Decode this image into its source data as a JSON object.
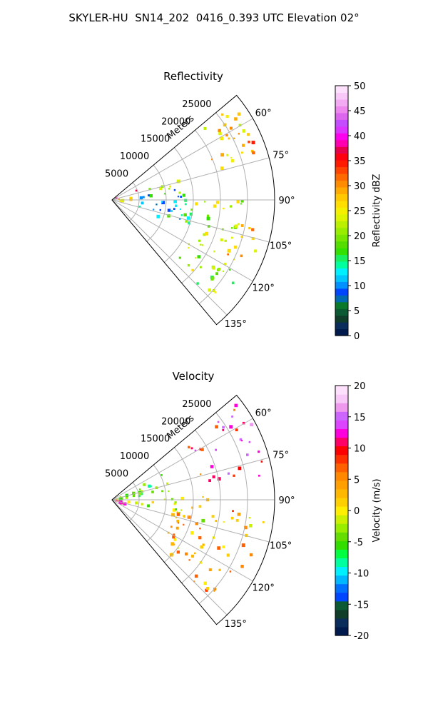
{
  "suptitle": "SKYLER-HU  SN14_202  0416_0.393 UTC Elevation 02°",
  "colors": {
    "reflectivity": [
      "#001a4d",
      "#0a2d5c",
      "#0f3d2a",
      "#0b5a34",
      "#0a7a2a",
      "#006bb0",
      "#0045ff",
      "#0090ff",
      "#00c8ff",
      "#00f0ff",
      "#00ff9e",
      "#18f060",
      "#33e000",
      "#55dd00",
      "#77e600",
      "#99ee00",
      "#bbf000",
      "#ddf500",
      "#f5f000",
      "#ffde00",
      "#ffc800",
      "#ffaa00",
      "#ff8c00",
      "#ff6a00",
      "#ff4400",
      "#ff1a00",
      "#ff0010",
      "#e8004a",
      "#ff00b0",
      "#ff00ee",
      "#dd33ff",
      "#c44dff",
      "#dd66ee",
      "#ee88ee",
      "#f3aaf3",
      "#f8c8f8",
      "#fce0fc"
    ],
    "velocity": [
      "#001a4d",
      "#0a2d5c",
      "#0f3d2a",
      "#0b5a34",
      "#0045ff",
      "#0070ff",
      "#00b8ff",
      "#00f0ff",
      "#00ff9e",
      "#00ff40",
      "#33dd00",
      "#66dd00",
      "#99ee00",
      "#ccf000",
      "#ffee00",
      "#ffd000",
      "#ffb800",
      "#ffa000",
      "#ff8800",
      "#ff6000",
      "#ff3000",
      "#ff0000",
      "#ff0066",
      "#ff00dd",
      "#dd44ff",
      "#cc66ff",
      "#ee99ee",
      "#f8c8f8",
      "#fce0fc"
    ]
  },
  "chart_data": [
    {
      "type": "heatmap",
      "projection": "polar-sector",
      "title": "Reflectivity",
      "radial_label": "Meters",
      "radial_ticks": [
        5000,
        10000,
        15000,
        20000,
        25000
      ],
      "radial_range": [
        0,
        30000
      ],
      "azimuth_ticks": [
        "60°",
        "75°",
        "90°",
        "105°",
        "120°",
        "135°"
      ],
      "azimuth_range": [
        50,
        140
      ],
      "colorbar": {
        "label": "Reflectivity dBZ",
        "range": [
          0,
          50
        ],
        "ticks": [
          0,
          5,
          10,
          15,
          20,
          25,
          30,
          35,
          40,
          45,
          50
        ]
      },
      "echo_regions": [
        {
          "az": [
            52,
            75
          ],
          "r": [
            19000,
            29500
          ],
          "value": 26
        },
        {
          "az": [
            58,
            72
          ],
          "r": [
            24000,
            29000
          ],
          "value": 31
        },
        {
          "az": [
            62,
            72
          ],
          "r": [
            800,
            6500
          ],
          "value": 38
        },
        {
          "az": [
            82,
            95
          ],
          "r": [
            800,
            4500
          ],
          "value": 28
        },
        {
          "az": [
            70,
            85
          ],
          "r": [
            7000,
            13000
          ],
          "value": 21
        },
        {
          "az": [
            80,
            112
          ],
          "r": [
            5000,
            15000
          ],
          "value": 13
        },
        {
          "az": [
            90,
            132
          ],
          "r": [
            13000,
            24500
          ],
          "value": 22
        },
        {
          "az": [
            100,
            118
          ],
          "r": [
            23000,
            28500
          ],
          "value": 28
        },
        {
          "az": [
            120,
            136
          ],
          "r": [
            22000,
            28000
          ],
          "value": 20
        }
      ]
    },
    {
      "type": "heatmap",
      "projection": "polar-sector",
      "title": "Velocity",
      "radial_label": "Meters",
      "radial_ticks": [
        5000,
        10000,
        15000,
        20000,
        25000
      ],
      "radial_range": [
        0,
        30000
      ],
      "azimuth_ticks": [
        "60°",
        "75°",
        "90°",
        "105°",
        "120°",
        "135°"
      ],
      "azimuth_range": [
        50,
        140
      ],
      "colorbar": {
        "label": "Velocity (m/s)",
        "range": [
          -20,
          20
        ],
        "ticks": [
          -20,
          -15,
          -10,
          -5,
          0,
          5,
          10,
          15,
          20
        ]
      },
      "echo_regions": [
        {
          "az": [
            52,
            82
          ],
          "r": [
            17000,
            29500
          ],
          "value": 11
        },
        {
          "az": [
            52,
            62
          ],
          "r": [
            23000,
            29500
          ],
          "value": 15
        },
        {
          "az": [
            62,
            82
          ],
          "r": [
            800,
            11000
          ],
          "value": -4
        },
        {
          "az": [
            82,
            100
          ],
          "r": [
            800,
            9000
          ],
          "value": -3
        },
        {
          "az": [
            85,
            105
          ],
          "r": [
            9000,
            18000
          ],
          "value": -2
        },
        {
          "az": [
            95,
            135
          ],
          "r": [
            12000,
            28500
          ],
          "value": 3
        },
        {
          "az": [
            100,
            112
          ],
          "r": [
            800,
            4000
          ],
          "value": 14
        }
      ]
    }
  ]
}
